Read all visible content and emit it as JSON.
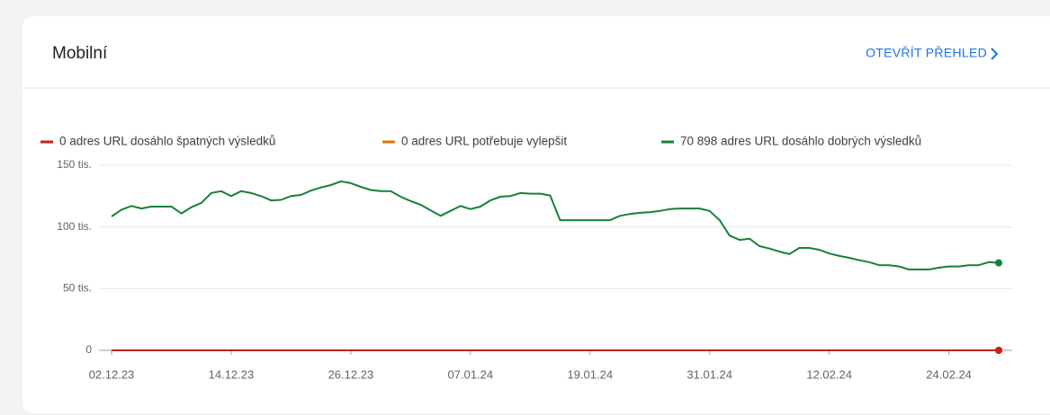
{
  "action": "OTEVŘÍT PŘEHLED",
  "chart_data": {
    "type": "line",
    "title": "Mobilní",
    "categories": [
      "02.12.23",
      null,
      null,
      null,
      null,
      null,
      null,
      null,
      null,
      null,
      null,
      null,
      "14.12.23",
      null,
      null,
      null,
      null,
      null,
      null,
      null,
      null,
      null,
      null,
      null,
      "26.12.23",
      null,
      null,
      null,
      null,
      null,
      null,
      null,
      null,
      null,
      null,
      null,
      "07.01.24",
      null,
      null,
      null,
      null,
      null,
      null,
      null,
      null,
      null,
      null,
      null,
      "19.01.24",
      null,
      null,
      null,
      null,
      null,
      null,
      null,
      null,
      null,
      null,
      null,
      "31.01.24",
      null,
      null,
      null,
      null,
      null,
      null,
      null,
      null,
      null,
      null,
      null,
      "12.02.24",
      null,
      null,
      null,
      null,
      null,
      null,
      null,
      null,
      null,
      null,
      null,
      "24.02.24",
      null,
      null,
      null,
      null,
      null
    ],
    "series": [
      {
        "name": "0 adres URL dosáhlo špatných výsledků",
        "color": "#c5221f",
        "values": [
          0,
          0,
          0,
          0,
          0,
          0,
          0,
          0,
          0,
          0,
          0,
          0,
          0,
          0,
          0,
          0,
          0,
          0,
          0,
          0,
          0,
          0,
          0,
          0,
          0,
          0,
          0,
          0,
          0,
          0,
          0,
          0,
          0,
          0,
          0,
          0,
          0,
          0,
          0,
          0,
          0,
          0,
          0,
          0,
          0,
          0,
          0,
          0,
          0,
          0,
          0,
          0,
          0,
          0,
          0,
          0,
          0,
          0,
          0,
          0,
          0,
          0,
          0,
          0,
          0,
          0,
          0,
          0,
          0,
          0,
          0,
          0,
          0,
          0,
          0,
          0,
          0,
          0,
          0,
          0,
          0,
          0,
          0,
          0,
          0,
          0,
          0,
          0,
          0,
          0
        ]
      },
      {
        "name": "0 adres URL potřebuje vylepšit",
        "color": "#e37400",
        "values": [
          0,
          0,
          0,
          0,
          0,
          0,
          0,
          0,
          0,
          0,
          0,
          0,
          0,
          0,
          0,
          0,
          0,
          0,
          0,
          0,
          0,
          0,
          0,
          0,
          0,
          0,
          0,
          0,
          0,
          0,
          0,
          0,
          0,
          0,
          0,
          0,
          0,
          0,
          0,
          0,
          0,
          0,
          0,
          0,
          0,
          0,
          0,
          0,
          0,
          0,
          0,
          0,
          0,
          0,
          0,
          0,
          0,
          0,
          0,
          0,
          0,
          0,
          0,
          0,
          0,
          0,
          0,
          0,
          0,
          0,
          0,
          0,
          0,
          0,
          0,
          0,
          0,
          0,
          0,
          0,
          0,
          0,
          0,
          0,
          0,
          0,
          0,
          0,
          0,
          0
        ]
      },
      {
        "name": "70 898 adres URL dosáhlo dobrých výsledků",
        "color": "#188038",
        "values": [
          108500,
          114000,
          117000,
          115000,
          116500,
          116500,
          116500,
          111000,
          116000,
          119500,
          127500,
          129000,
          125000,
          129000,
          127500,
          125000,
          121500,
          122000,
          125000,
          126000,
          129500,
          132000,
          134000,
          137000,
          135500,
          132500,
          130000,
          129000,
          129000,
          124500,
          121000,
          118000,
          113500,
          109000,
          113000,
          117000,
          114500,
          116500,
          121500,
          124500,
          125000,
          127500,
          127000,
          127000,
          125500,
          105500,
          105500,
          105500,
          105500,
          105500,
          105500,
          109000,
          110500,
          111500,
          112000,
          113000,
          114500,
          115000,
          115000,
          115000,
          113000,
          105500,
          93000,
          89500,
          90500,
          84500,
          82500,
          80000,
          78000,
          83000,
          83000,
          81500,
          78500,
          76500,
          75000,
          73000,
          71500,
          69000,
          69000,
          68000,
          65500,
          65500,
          65500,
          67000,
          68000,
          68000,
          69000,
          69000,
          71500,
          70898
        ]
      }
    ],
    "ylim": [
      0,
      150000
    ],
    "yticks": [
      0,
      {
        "value": 50000,
        "label": "50 tis."
      },
      {
        "value": 100000,
        "label": "100 tis."
      },
      {
        "value": 150000,
        "label": "150 tis."
      }
    ],
    "grid": true
  }
}
